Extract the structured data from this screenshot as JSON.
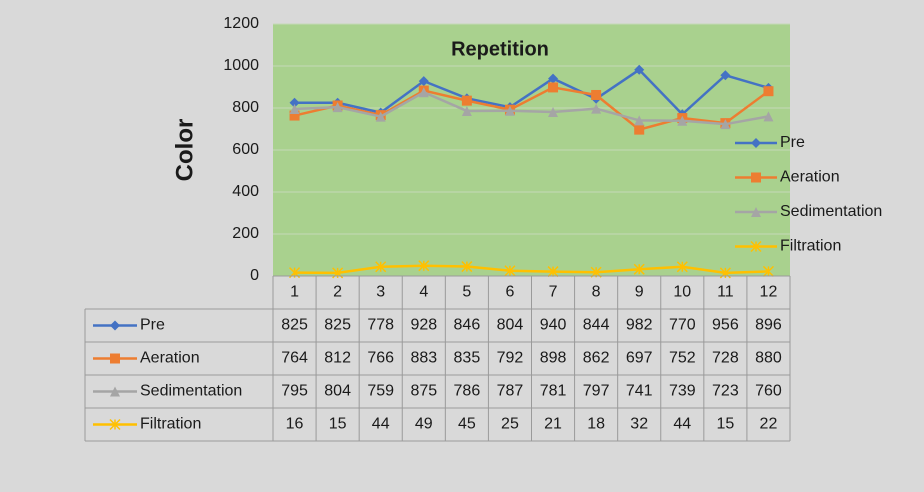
{
  "chart_data": {
    "type": "line",
    "title": "Repetition",
    "y_label": "Color",
    "categories": [
      "1",
      "2",
      "3",
      "4",
      "5",
      "6",
      "7",
      "8",
      "9",
      "10",
      "11",
      "12"
    ],
    "series": [
      {
        "name": "Pre",
        "color": "#4472c4",
        "marker": "diamond",
        "values": [
          825,
          825,
          778,
          928,
          846,
          804,
          940,
          844,
          982,
          770,
          956,
          896
        ]
      },
      {
        "name": "Aeration",
        "color": "#ed7d31",
        "marker": "square",
        "values": [
          764,
          812,
          766,
          883,
          835,
          792,
          898,
          862,
          697,
          752,
          728,
          880
        ]
      },
      {
        "name": "Sedimentation",
        "color": "#a5a5a5",
        "marker": "triangle",
        "values": [
          795,
          804,
          759,
          875,
          786,
          787,
          781,
          797,
          741,
          739,
          723,
          760
        ]
      },
      {
        "name": "Filtration",
        "color": "#ffc000",
        "marker": "star",
        "values": [
          16,
          15,
          44,
          49,
          45,
          25,
          21,
          18,
          32,
          44,
          15,
          22
        ]
      }
    ],
    "ylim": [
      0,
      1200
    ],
    "yticks": [
      0,
      200,
      400,
      600,
      800,
      1000,
      1200
    ],
    "grid": true,
    "legend": "right",
    "data_table": true
  }
}
